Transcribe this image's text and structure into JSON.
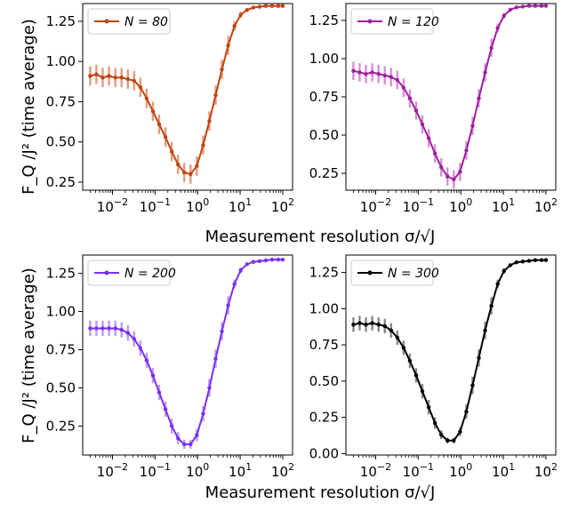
{
  "figure": {
    "xlabel": "Measurement resolution σ/√J",
    "ylabel": "F_Q /J² (time average)"
  },
  "chart_data": [
    {
      "type": "line",
      "panel": "top-left",
      "legend": "N = 80",
      "legend_placement": "top-left",
      "color": "#c1440e",
      "errorbar_color": "#e59a80",
      "xscale": "log",
      "xlim": [
        0.002,
        170
      ],
      "ylim": [
        0.2,
        1.36
      ],
      "xticks": [
        "10^-2",
        "10^-1",
        "10^0",
        "10^1",
        "10^2"
      ],
      "yticks": [
        "0.25",
        "0.50",
        "0.75",
        "1.00",
        "1.25"
      ],
      "x": [
        0.003,
        0.0042,
        0.0059,
        0.0083,
        0.0117,
        0.0164,
        0.023,
        0.0323,
        0.0453,
        0.0636,
        0.0893,
        0.125,
        0.176,
        0.247,
        0.347,
        0.487,
        0.683,
        0.959,
        1.35,
        1.89,
        2.65,
        3.72,
        5.23,
        7.34,
        10.3,
        14.5,
        20.3,
        28.5,
        40.0,
        56.1,
        78.8,
        100
      ],
      "y": [
        0.91,
        0.92,
        0.9,
        0.91,
        0.9,
        0.9,
        0.89,
        0.88,
        0.84,
        0.77,
        0.69,
        0.61,
        0.53,
        0.44,
        0.36,
        0.31,
        0.3,
        0.35,
        0.48,
        0.63,
        0.79,
        0.95,
        1.1,
        1.22,
        1.29,
        1.32,
        1.335,
        1.34,
        1.345,
        1.345,
        1.345,
        1.345
      ],
      "yerr": [
        0.06,
        0.06,
        0.06,
        0.06,
        0.06,
        0.06,
        0.06,
        0.06,
        0.06,
        0.06,
        0.06,
        0.06,
        0.06,
        0.06,
        0.06,
        0.06,
        0.06,
        0.06,
        0.06,
        0.06,
        0.06,
        0.06,
        0.06,
        0.03,
        0.02,
        0.01,
        0.005,
        0.005,
        0.005,
        0.005,
        0.005,
        0.005
      ]
    },
    {
      "type": "line",
      "panel": "top-right",
      "legend": "N = 120",
      "legend_placement": "top-left",
      "color": "#a020a0",
      "errorbar_color": "#d88fd8",
      "xscale": "log",
      "xlim": [
        0.002,
        170
      ],
      "ylim": [
        0.14,
        1.36
      ],
      "xticks": [
        "10^-2",
        "10^-1",
        "10^0",
        "10^1",
        "10^2"
      ],
      "yticks": [
        "0.25",
        "0.50",
        "0.75",
        "1.00",
        "1.25"
      ],
      "x": [
        0.003,
        0.0042,
        0.0059,
        0.0083,
        0.0117,
        0.0164,
        0.023,
        0.0323,
        0.0453,
        0.0636,
        0.0893,
        0.125,
        0.176,
        0.247,
        0.347,
        0.487,
        0.683,
        0.959,
        1.35,
        1.89,
        2.65,
        3.72,
        5.23,
        7.34,
        10.3,
        14.5,
        20.3,
        28.5,
        40.0,
        56.1,
        78.8,
        100
      ],
      "y": [
        0.92,
        0.91,
        0.9,
        0.91,
        0.9,
        0.89,
        0.88,
        0.86,
        0.81,
        0.74,
        0.66,
        0.57,
        0.48,
        0.38,
        0.29,
        0.23,
        0.21,
        0.26,
        0.4,
        0.56,
        0.74,
        0.91,
        1.07,
        1.2,
        1.28,
        1.32,
        1.335,
        1.34,
        1.345,
        1.345,
        1.345,
        1.345
      ],
      "yerr": [
        0.06,
        0.06,
        0.06,
        0.06,
        0.06,
        0.06,
        0.06,
        0.06,
        0.06,
        0.06,
        0.06,
        0.06,
        0.06,
        0.06,
        0.06,
        0.06,
        0.06,
        0.06,
        0.06,
        0.06,
        0.06,
        0.06,
        0.06,
        0.03,
        0.02,
        0.01,
        0.005,
        0.005,
        0.005,
        0.005,
        0.005,
        0.005
      ]
    },
    {
      "type": "line",
      "panel": "bottom-left",
      "legend": "N = 200",
      "legend_placement": "top-left",
      "color": "#7b2ff2",
      "errorbar_color": "#bb9af5",
      "xscale": "log",
      "xlim": [
        0.002,
        170
      ],
      "ylim": [
        0.06,
        1.37
      ],
      "xticks": [
        "10^-2",
        "10^-1",
        "10^0",
        "10^1",
        "10^2"
      ],
      "yticks": [
        "0.25",
        "0.50",
        "0.75",
        "1.00",
        "1.25"
      ],
      "x": [
        0.003,
        0.0042,
        0.0059,
        0.0083,
        0.0117,
        0.0164,
        0.023,
        0.0323,
        0.0453,
        0.0636,
        0.0893,
        0.125,
        0.176,
        0.247,
        0.347,
        0.487,
        0.683,
        0.959,
        1.35,
        1.89,
        2.65,
        3.72,
        5.23,
        7.34,
        10.3,
        14.5,
        20.3,
        28.5,
        40.0,
        56.1,
        78.8,
        100
      ],
      "y": [
        0.89,
        0.89,
        0.89,
        0.89,
        0.89,
        0.88,
        0.86,
        0.82,
        0.76,
        0.68,
        0.58,
        0.47,
        0.36,
        0.25,
        0.17,
        0.13,
        0.13,
        0.19,
        0.33,
        0.5,
        0.69,
        0.87,
        1.04,
        1.18,
        1.27,
        1.31,
        1.325,
        1.33,
        1.335,
        1.34,
        1.34,
        1.34
      ],
      "yerr": [
        0.05,
        0.05,
        0.05,
        0.05,
        0.05,
        0.05,
        0.05,
        0.05,
        0.05,
        0.05,
        0.05,
        0.05,
        0.05,
        0.05,
        0.04,
        0.03,
        0.03,
        0.04,
        0.05,
        0.06,
        0.06,
        0.06,
        0.06,
        0.03,
        0.02,
        0.01,
        0.005,
        0.005,
        0.005,
        0.005,
        0.005,
        0.005
      ]
    },
    {
      "type": "line",
      "panel": "bottom-right",
      "legend": "N = 300",
      "legend_placement": "top-left",
      "color": "#000000",
      "errorbar_color": "#8a8a8a",
      "xscale": "log",
      "xlim": [
        0.002,
        170
      ],
      "ylim": [
        -0.01,
        1.37
      ],
      "xticks": [
        "10^-2",
        "10^-1",
        "10^0",
        "10^1",
        "10^2"
      ],
      "yticks": [
        "0.00",
        "0.25",
        "0.50",
        "0.75",
        "1.00",
        "1.25"
      ],
      "x": [
        0.003,
        0.0042,
        0.0059,
        0.0083,
        0.0117,
        0.0164,
        0.023,
        0.0323,
        0.0453,
        0.0636,
        0.0893,
        0.125,
        0.176,
        0.247,
        0.347,
        0.487,
        0.683,
        0.959,
        1.35,
        1.89,
        2.65,
        3.72,
        5.23,
        7.34,
        10.3,
        14.5,
        20.3,
        28.5,
        40.0,
        56.1,
        78.8,
        100
      ],
      "y": [
        0.89,
        0.9,
        0.89,
        0.9,
        0.89,
        0.88,
        0.85,
        0.8,
        0.73,
        0.64,
        0.54,
        0.43,
        0.32,
        0.21,
        0.13,
        0.09,
        0.09,
        0.15,
        0.29,
        0.47,
        0.66,
        0.85,
        1.02,
        1.17,
        1.26,
        1.3,
        1.32,
        1.325,
        1.33,
        1.335,
        1.335,
        1.335
      ],
      "yerr": [
        0.05,
        0.05,
        0.05,
        0.05,
        0.05,
        0.05,
        0.05,
        0.05,
        0.05,
        0.05,
        0.05,
        0.05,
        0.05,
        0.04,
        0.03,
        0.02,
        0.02,
        0.03,
        0.05,
        0.06,
        0.06,
        0.06,
        0.06,
        0.03,
        0.02,
        0.01,
        0.005,
        0.005,
        0.005,
        0.005,
        0.005,
        0.005
      ]
    }
  ]
}
